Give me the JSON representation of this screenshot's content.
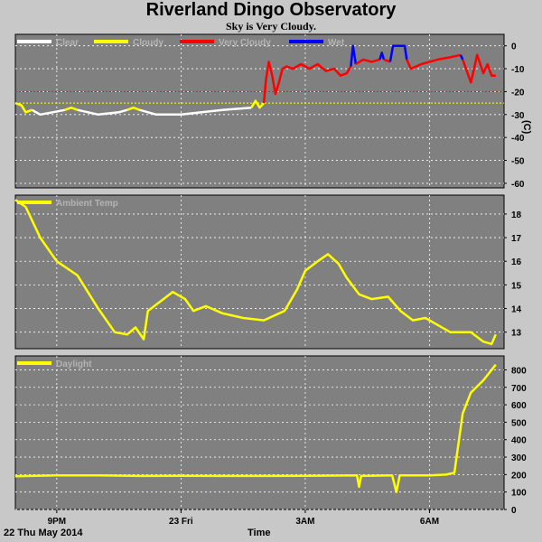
{
  "page": {
    "title": "Riverland Dingo Observatory",
    "subtitle": "Sky is Very Cloudy.",
    "date_label": "22 Thu May 2014",
    "time_label": "Time"
  },
  "colors": {
    "background": "#c8c8c8",
    "plot_bg": "#808080",
    "grid": "#ffffff",
    "clear": "#ffffff",
    "cloudy": "#ffff00",
    "very_cloudy": "#ff0000",
    "wet": "#0000ff",
    "ambient": "#ffff00",
    "daylight": "#ffff00"
  },
  "chart_data": [
    {
      "type": "line",
      "name": "sky",
      "x_unit": "hours since 20:00",
      "xlim": [
        0,
        11.8
      ],
      "x_ticks": [
        {
          "x": 1,
          "label": "9PM"
        },
        {
          "x": 4,
          "label": "23 Fri"
        },
        {
          "x": 7,
          "label": "3AM"
        },
        {
          "x": 10,
          "label": "6AM"
        }
      ],
      "ylim": [
        -62,
        5
      ],
      "y_ticks": [
        0,
        -10,
        -20,
        -30,
        -40,
        -50,
        -60
      ],
      "ylabel": "(C)",
      "thresholds": [
        {
          "y": -20,
          "color": "#ff0000",
          "style": "dotted"
        },
        {
          "y": -25,
          "color": "#ffff00",
          "style": "dotted"
        }
      ],
      "legend": [
        "Clear",
        "Cloudy",
        "Very Cloudy",
        "Wet"
      ],
      "series": [
        {
          "name": "Cloudy",
          "color": "#ffff00",
          "points": [
            [
              0,
              -25
            ],
            [
              0.15,
              -26
            ],
            [
              0.25,
              -29
            ],
            [
              0.4,
              -28
            ]
          ]
        },
        {
          "name": "Clear",
          "color": "#ffffff",
          "points": [
            [
              0.4,
              -28
            ],
            [
              0.6,
              -30
            ],
            [
              0.9,
              -29
            ],
            [
              1.2,
              -28
            ]
          ]
        },
        {
          "name": "Cloudy",
          "color": "#ffff00",
          "points": [
            [
              1.2,
              -28
            ],
            [
              1.35,
              -27
            ],
            [
              1.5,
              -28
            ]
          ]
        },
        {
          "name": "Clear",
          "color": "#ffffff",
          "points": [
            [
              1.5,
              -28
            ],
            [
              2,
              -30
            ],
            [
              2.5,
              -29
            ],
            [
              2.7,
              -28
            ]
          ]
        },
        {
          "name": "Cloudy",
          "color": "#ffff00",
          "points": [
            [
              2.7,
              -28
            ],
            [
              2.85,
              -27
            ],
            [
              3,
              -28
            ]
          ]
        },
        {
          "name": "Clear",
          "color": "#ffffff",
          "points": [
            [
              3,
              -28
            ],
            [
              3.4,
              -30
            ],
            [
              4,
              -30
            ],
            [
              4.5,
              -29
            ],
            [
              5,
              -28
            ],
            [
              5.7,
              -27
            ]
          ]
        },
        {
          "name": "Cloudy",
          "color": "#ffff00",
          "points": [
            [
              5.7,
              -27
            ],
            [
              5.8,
              -24
            ],
            [
              5.9,
              -27
            ],
            [
              6,
              -25
            ]
          ]
        },
        {
          "name": "Very Cloudy",
          "color": "#ff0000",
          "points": [
            [
              6,
              -25
            ],
            [
              6.05,
              -15
            ],
            [
              6.12,
              -7
            ],
            [
              6.2,
              -13
            ],
            [
              6.28,
              -21
            ],
            [
              6.35,
              -17
            ],
            [
              6.45,
              -10
            ],
            [
              6.55,
              -9
            ],
            [
              6.7,
              -10
            ],
            [
              6.9,
              -8
            ],
            [
              7.1,
              -10
            ],
            [
              7.3,
              -8
            ],
            [
              7.5,
              -11
            ],
            [
              7.7,
              -10
            ],
            [
              7.85,
              -13
            ],
            [
              8,
              -12
            ],
            [
              8.1,
              -9
            ]
          ]
        },
        {
          "name": "Wet",
          "color": "#0000ff",
          "points": [
            [
              8.1,
              -9
            ],
            [
              8.15,
              0
            ],
            [
              8.22,
              -8
            ]
          ]
        },
        {
          "name": "Very Cloudy",
          "color": "#ff0000",
          "points": [
            [
              8.22,
              -8
            ],
            [
              8.4,
              -6
            ],
            [
              8.6,
              -7
            ],
            [
              8.8,
              -6
            ]
          ]
        },
        {
          "name": "Wet",
          "color": "#0000ff",
          "points": [
            [
              8.8,
              -6
            ],
            [
              8.85,
              -3
            ],
            [
              8.9,
              -6
            ]
          ]
        },
        {
          "name": "Very Cloudy",
          "color": "#ff0000",
          "points": [
            [
              8.9,
              -6
            ],
            [
              9.05,
              -7
            ]
          ]
        },
        {
          "name": "Wet",
          "color": "#0000ff",
          "points": [
            [
              9.05,
              -7
            ],
            [
              9.12,
              0
            ],
            [
              9.4,
              0
            ],
            [
              9.45,
              -6
            ]
          ]
        },
        {
          "name": "Very Cloudy",
          "color": "#ff0000",
          "points": [
            [
              9.45,
              -6
            ],
            [
              9.55,
              -10
            ],
            [
              9.8,
              -8
            ],
            [
              10.2,
              -6
            ],
            [
              10.5,
              -5
            ],
            [
              10.75,
              -4
            ]
          ]
        },
        {
          "name": "Wet",
          "color": "#0000ff",
          "points": [
            [
              10.75,
              -4
            ],
            [
              10.8,
              -6
            ]
          ]
        },
        {
          "name": "Very Cloudy",
          "color": "#ff0000",
          "points": [
            [
              10.8,
              -6
            ],
            [
              11,
              -16
            ],
            [
              11.15,
              -4
            ],
            [
              11.3,
              -12
            ],
            [
              11.4,
              -8
            ],
            [
              11.5,
              -13
            ],
            [
              11.6,
              -13
            ]
          ]
        }
      ]
    },
    {
      "type": "line",
      "name": "ambient",
      "x_unit": "hours since 20:00",
      "xlim": [
        0,
        11.8
      ],
      "ylim": [
        12.3,
        18.8
      ],
      "y_ticks": [
        13,
        14,
        15,
        16,
        17,
        18
      ],
      "legend": [
        "Ambient Temp"
      ],
      "series": [
        {
          "name": "Ambient Temp",
          "color": "#ffff00",
          "points": [
            [
              0,
              18.6
            ],
            [
              0.25,
              18.3
            ],
            [
              0.6,
              17
            ],
            [
              1,
              16
            ],
            [
              1.5,
              15.4
            ],
            [
              2,
              14
            ],
            [
              2.4,
              13
            ],
            [
              2.7,
              12.9
            ],
            [
              2.9,
              13.2
            ],
            [
              3.1,
              12.7
            ],
            [
              3.2,
              13.9
            ],
            [
              3.5,
              14.3
            ],
            [
              3.8,
              14.7
            ],
            [
              4.1,
              14.4
            ],
            [
              4.3,
              13.9
            ],
            [
              4.6,
              14.1
            ],
            [
              5,
              13.8
            ],
            [
              5.5,
              13.6
            ],
            [
              6,
              13.5
            ],
            [
              6.5,
              13.9
            ],
            [
              6.8,
              14.8
            ],
            [
              7,
              15.6
            ],
            [
              7.3,
              16
            ],
            [
              7.55,
              16.3
            ],
            [
              7.8,
              15.9
            ],
            [
              8,
              15.3
            ],
            [
              8.3,
              14.6
            ],
            [
              8.6,
              14.4
            ],
            [
              9,
              14.5
            ],
            [
              9.3,
              13.9
            ],
            [
              9.6,
              13.5
            ],
            [
              9.9,
              13.6
            ],
            [
              10.2,
              13.3
            ],
            [
              10.5,
              13
            ],
            [
              11,
              13
            ],
            [
              11.3,
              12.6
            ],
            [
              11.5,
              12.5
            ],
            [
              11.6,
              12.9
            ]
          ]
        }
      ]
    },
    {
      "type": "line",
      "name": "daylight",
      "x_unit": "hours since 20:00",
      "xlim": [
        0,
        11.8
      ],
      "ylim": [
        0,
        880
      ],
      "y_ticks": [
        0,
        100,
        200,
        300,
        400,
        500,
        600,
        700,
        800
      ],
      "legend": [
        "Daylight"
      ],
      "series": [
        {
          "name": "Daylight",
          "color": "#ffff00",
          "points": [
            [
              0,
              190
            ],
            [
              1,
              195
            ],
            [
              2,
              195
            ],
            [
              3,
              192
            ],
            [
              4,
              193
            ],
            [
              5,
              192
            ],
            [
              6,
              192
            ],
            [
              7,
              193
            ],
            [
              8.25,
              195
            ],
            [
              8.3,
              130
            ],
            [
              8.35,
              192
            ],
            [
              9.1,
              195
            ],
            [
              9.2,
              100
            ],
            [
              9.28,
              195
            ],
            [
              10,
              195
            ],
            [
              10.4,
              200
            ],
            [
              10.6,
              210
            ],
            [
              10.8,
              550
            ],
            [
              11,
              670
            ],
            [
              11.3,
              740
            ],
            [
              11.6,
              830
            ]
          ]
        }
      ]
    }
  ]
}
